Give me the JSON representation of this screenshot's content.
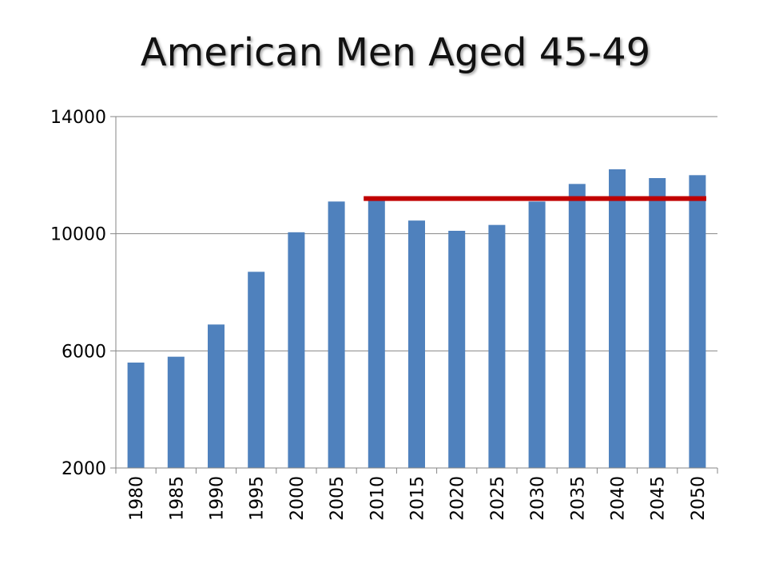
{
  "chart_data": {
    "type": "bar",
    "title": "American Men Aged 45-49",
    "xlabel": "",
    "ylabel": "",
    "categories": [
      "1980",
      "1985",
      "1990",
      "1995",
      "2000",
      "2005",
      "2010",
      "2015",
      "2020",
      "2025",
      "2030",
      "2035",
      "2040",
      "2045",
      "2050"
    ],
    "series": [
      {
        "values": [
          5600,
          5800,
          6900,
          8700,
          10050,
          11100,
          11250,
          10450,
          10100,
          10300,
          11100,
          11700,
          12200,
          11900,
          12000
        ]
      }
    ],
    "ylim": [
      2000,
      14000
    ],
    "yticks": [
      "2000",
      "6000",
      "10000",
      "14000"
    ],
    "reference_line": {
      "value": 11200,
      "from": "2010",
      "to": "2050"
    },
    "grid": true,
    "colors": {
      "bar": "#4F81BD",
      "reference_line": "#C00000",
      "grid": "#868686"
    }
  }
}
